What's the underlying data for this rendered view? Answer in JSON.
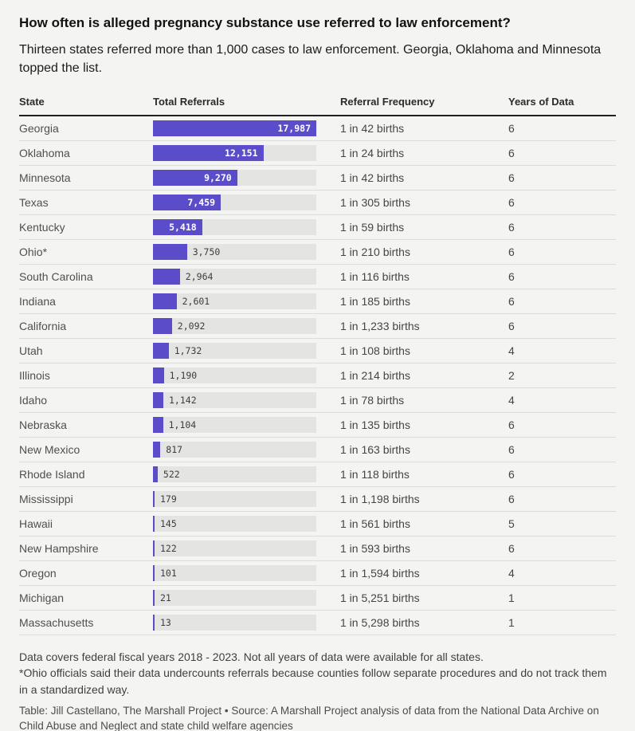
{
  "page": {
    "background": "#f4f4f2"
  },
  "colors": {
    "accent": "#5b4dc9",
    "bar_track": "#e4e4e2",
    "header_rule": "#222222",
    "row_rule": "#dcdcd8"
  },
  "header": {
    "title": "How often is alleged pregnancy substance use referred to law enforcement?",
    "subtitle": "Thirteen states referred more than 1,000 cases to law enforcement. Georgia, Oklahoma and Minnesota topped the list."
  },
  "table": {
    "columns": [
      "State",
      "Total Referrals",
      "Referral Frequency",
      "Years of Data"
    ]
  },
  "chart_data": {
    "type": "bar",
    "title": "How often is alleged pregnancy substance use referred to law enforcement?",
    "subtitle": "Thirteen states referred more than 1,000 cases to law enforcement. Georgia, Oklahoma and Minnesota topped the list.",
    "columns": [
      "State",
      "Total Referrals",
      "Referral Frequency",
      "Years of Data"
    ],
    "xlim": [
      0,
      17987
    ],
    "max_value": 17987,
    "rows": [
      {
        "state": "Georgia",
        "total_referrals": 17987,
        "total_label": "17,987",
        "frequency": "1 in 42 births",
        "years": "6",
        "label_inside": true
      },
      {
        "state": "Oklahoma",
        "total_referrals": 12151,
        "total_label": "12,151",
        "frequency": "1 in 24 births",
        "years": "6",
        "label_inside": true
      },
      {
        "state": "Minnesota",
        "total_referrals": 9270,
        "total_label": "9,270",
        "frequency": "1 in 42 births",
        "years": "6",
        "label_inside": true
      },
      {
        "state": "Texas",
        "total_referrals": 7459,
        "total_label": "7,459",
        "frequency": "1 in 305 births",
        "years": "6",
        "label_inside": true
      },
      {
        "state": "Kentucky",
        "total_referrals": 5418,
        "total_label": "5,418",
        "frequency": "1 in 59 births",
        "years": "6",
        "label_inside": true
      },
      {
        "state": "Ohio*",
        "total_referrals": 3750,
        "total_label": "3,750",
        "frequency": "1 in 210 births",
        "years": "6",
        "label_inside": false
      },
      {
        "state": "South Carolina",
        "total_referrals": 2964,
        "total_label": "2,964",
        "frequency": "1 in 116 births",
        "years": "6",
        "label_inside": false
      },
      {
        "state": "Indiana",
        "total_referrals": 2601,
        "total_label": "2,601",
        "frequency": "1 in 185 births",
        "years": "6",
        "label_inside": false
      },
      {
        "state": "California",
        "total_referrals": 2092,
        "total_label": "2,092",
        "frequency": "1 in 1,233 births",
        "years": "6",
        "label_inside": false
      },
      {
        "state": "Utah",
        "total_referrals": 1732,
        "total_label": "1,732",
        "frequency": "1 in 108 births",
        "years": "4",
        "label_inside": false
      },
      {
        "state": "Illinois",
        "total_referrals": 1190,
        "total_label": "1,190",
        "frequency": "1 in 214 births",
        "years": "2",
        "label_inside": false
      },
      {
        "state": "Idaho",
        "total_referrals": 1142,
        "total_label": "1,142",
        "frequency": "1 in 78 births",
        "years": "4",
        "label_inside": false
      },
      {
        "state": "Nebraska",
        "total_referrals": 1104,
        "total_label": "1,104",
        "frequency": "1 in 135 births",
        "years": "6",
        "label_inside": false
      },
      {
        "state": "New Mexico",
        "total_referrals": 817,
        "total_label": "817",
        "frequency": "1 in 163 births",
        "years": "6",
        "label_inside": false
      },
      {
        "state": "Rhode Island",
        "total_referrals": 522,
        "total_label": "522",
        "frequency": "1 in 118 births",
        "years": "6",
        "label_inside": false
      },
      {
        "state": "Mississippi",
        "total_referrals": 179,
        "total_label": "179",
        "frequency": "1 in 1,198 births",
        "years": "6",
        "label_inside": false
      },
      {
        "state": "Hawaii",
        "total_referrals": 145,
        "total_label": "145",
        "frequency": "1 in 561 births",
        "years": "5",
        "label_inside": false
      },
      {
        "state": "New Hampshire",
        "total_referrals": 122,
        "total_label": "122",
        "frequency": "1 in 593 births",
        "years": "6",
        "label_inside": false
      },
      {
        "state": "Oregon",
        "total_referrals": 101,
        "total_label": "101",
        "frequency": "1 in 1,594 births",
        "years": "4",
        "label_inside": false
      },
      {
        "state": "Michigan",
        "total_referrals": 21,
        "total_label": "21",
        "frequency": "1 in 5,251 births",
        "years": "1",
        "label_inside": false
      },
      {
        "state": "Massachusetts",
        "total_referrals": 13,
        "total_label": "13",
        "frequency": "1 in 5,298 births",
        "years": "1",
        "label_inside": false
      }
    ]
  },
  "footer": {
    "note1": "Data covers federal fiscal years 2018 - 2023. Not all years of data were available for all states.",
    "note2": "*Ohio officials said their data undercounts referrals because counties follow separate procedures and do not track them in a standardized way.",
    "credit": "Table: Jill Castellano, The Marshall Project • Source: A Marshall Project analysis of data from the National Data Archive on Child Abuse and Neglect and state child welfare agencies"
  }
}
